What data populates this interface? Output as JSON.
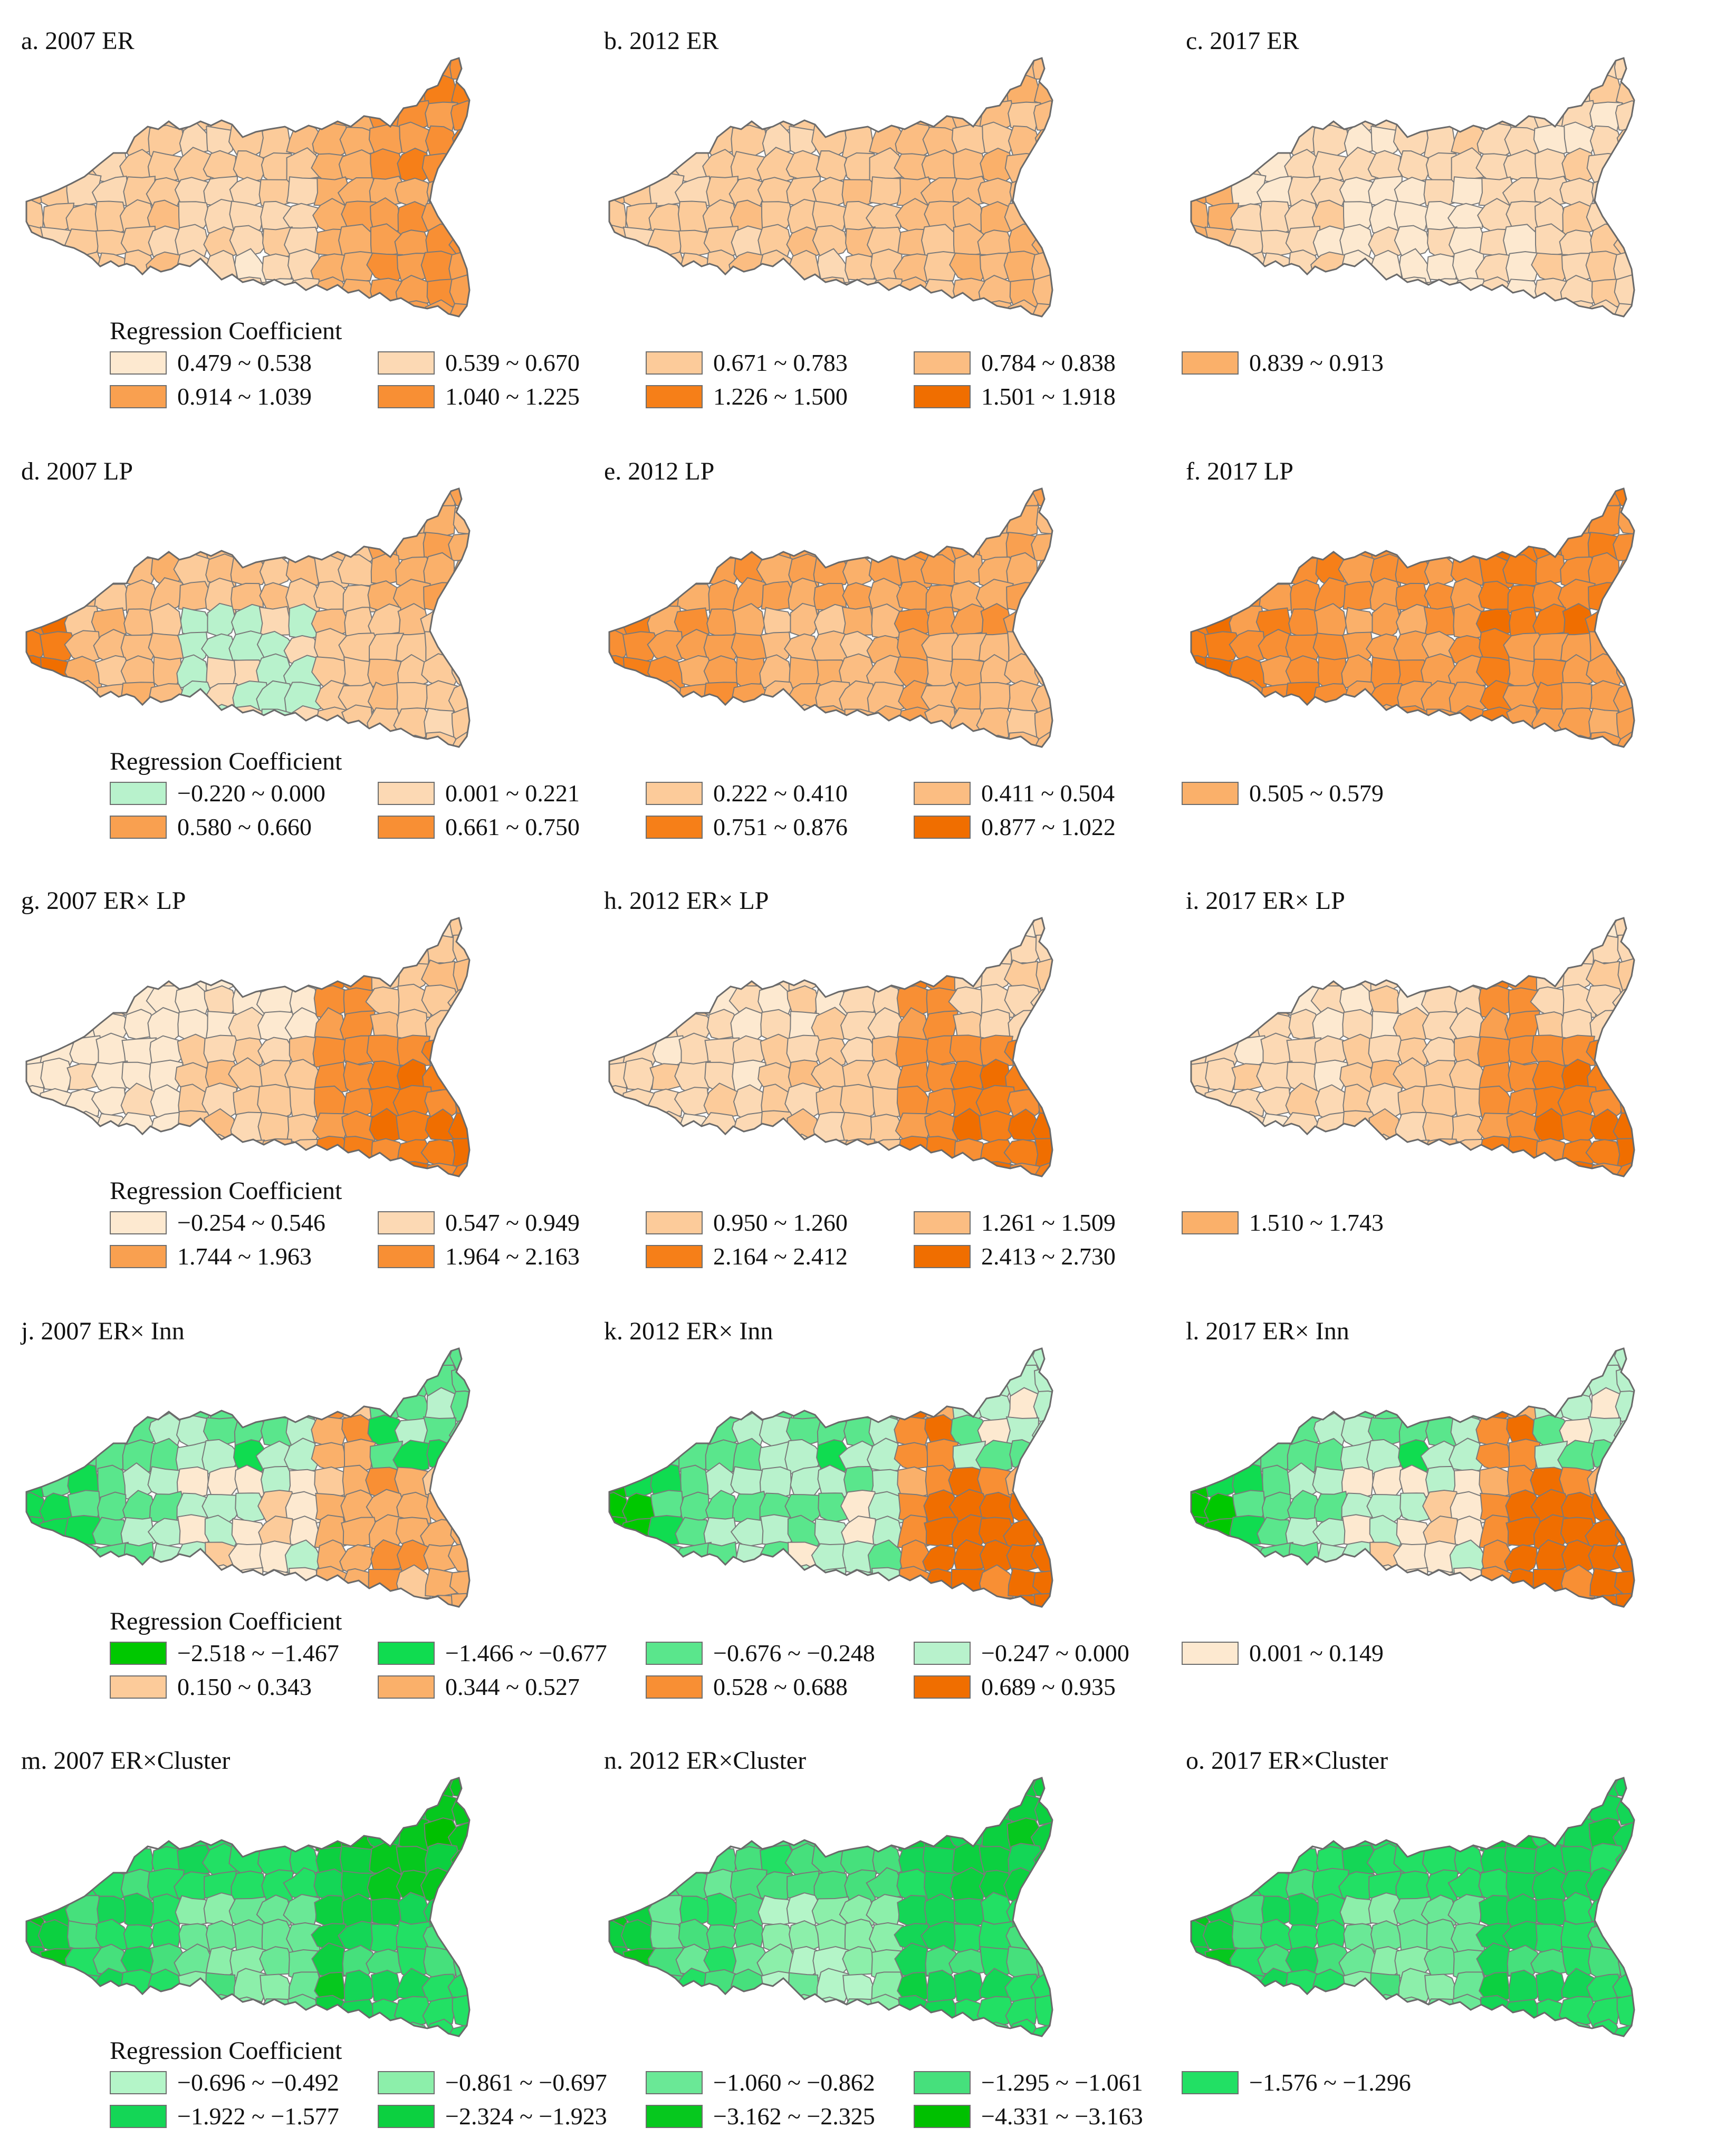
{
  "rows": [
    {
      "panels": [
        {
          "label": "a. 2007 ER",
          "shade": {
            "west": 2,
            "center": 1,
            "east": 4,
            "ne": 6,
            "se": 5,
            "wtip": 2
          }
        },
        {
          "label": "b. 2012 ER",
          "shade": {
            "west": 2,
            "center": 2,
            "east": 3,
            "ne": 3,
            "se": 3,
            "wtip": 2
          }
        },
        {
          "label": "c. 2017 ER",
          "shade": {
            "west": 1,
            "center": 0,
            "east": 1,
            "ne": 1,
            "se": 1,
            "wtip": 4
          }
        }
      ],
      "legend": {
        "title": "Regression Coefficient",
        "items": [
          {
            "label": "0.479 ~ 0.538",
            "color": "#fde9d0"
          },
          {
            "label": "0.539 ~ 0.670",
            "color": "#fcd9b4"
          },
          {
            "label": "0.671 ~ 0.783",
            "color": "#fccb9a"
          },
          {
            "label": "0.784 ~ 0.838",
            "color": "#fbbd82"
          },
          {
            "label": "0.839 ~ 0.913",
            "color": "#fab06a"
          },
          {
            "label": "0.914 ~ 1.039",
            "color": "#f9a050"
          },
          {
            "label": "1.040 ~ 1.225",
            "color": "#f88f34"
          },
          {
            "label": "1.226 ~ 1.500",
            "color": "#f67f18"
          },
          {
            "label": "1.501 ~ 1.918",
            "color": "#f06e00"
          }
        ]
      }
    },
    {
      "panels": [
        {
          "label": "d. 2007 LP",
          "shade": {
            "west": 3,
            "center": 0,
            "east": 2,
            "ne": 4,
            "se": 2,
            "wtip": 8
          }
        },
        {
          "label": "e. 2012 LP",
          "shade": {
            "west": 5,
            "center": 3,
            "east": 5,
            "ne": 4,
            "se": 3,
            "wtip": 7
          }
        },
        {
          "label": "f. 2017 LP",
          "shade": {
            "west": 6,
            "center": 5,
            "east": 7,
            "ne": 6,
            "se": 5,
            "wtip": 8
          }
        }
      ],
      "legend": {
        "title": "Regression Coefficient",
        "items": [
          {
            "label": "−0.220 ~ 0.000",
            "color": "#b8f2cc"
          },
          {
            "label": "0.001 ~ 0.221",
            "color": "#fcd9b4"
          },
          {
            "label": "0.222 ~ 0.410",
            "color": "#fccb9a"
          },
          {
            "label": "0.411 ~ 0.504",
            "color": "#fbbd82"
          },
          {
            "label": "0.505 ~ 0.579",
            "color": "#fab06a"
          },
          {
            "label": "0.580 ~ 0.660",
            "color": "#f9a050"
          },
          {
            "label": "0.661 ~ 0.750",
            "color": "#f88f34"
          },
          {
            "label": "0.751 ~ 0.876",
            "color": "#f67f18"
          },
          {
            "label": "0.877 ~ 1.022",
            "color": "#f06e00"
          }
        ]
      }
    },
    {
      "panels": [
        {
          "label": "g. 2007 ER× LP",
          "shade": {
            "west": 0,
            "center": 2,
            "east": 6,
            "ne": 2,
            "se": 7,
            "wtip": 0
          }
        },
        {
          "label": "h. 2012 ER× LP",
          "shade": {
            "west": 1,
            "center": 2,
            "east": 6,
            "ne": 1,
            "se": 7,
            "wtip": 1
          }
        },
        {
          "label": "i. 2017 ER× LP",
          "shade": {
            "west": 1,
            "center": 2,
            "east": 6,
            "ne": 1,
            "se": 7,
            "wtip": 1
          }
        }
      ],
      "legend": {
        "title": "Regression Coefficient",
        "items": [
          {
            "label": "−0.254 ~ 0.546",
            "color": "#fde9d0"
          },
          {
            "label": "0.547 ~ 0.949",
            "color": "#fcd9b4"
          },
          {
            "label": "0.950 ~ 1.260",
            "color": "#fccb9a"
          },
          {
            "label": "1.261 ~ 1.509",
            "color": "#fbbd82"
          },
          {
            "label": "1.510 ~ 1.743",
            "color": "#fab06a"
          },
          {
            "label": "1.744 ~ 1.963",
            "color": "#f9a050"
          },
          {
            "label": "1.964 ~ 2.163",
            "color": "#f88f34"
          },
          {
            "label": "2.164 ~ 2.412",
            "color": "#f67f18"
          },
          {
            "label": "2.413 ~ 2.730",
            "color": "#f06e00"
          }
        ]
      }
    },
    {
      "panels": [
        {
          "label": "j. 2007 ER× Inn",
          "shade": {
            "west": 2,
            "center": 4,
            "east": 6,
            "ne": 2,
            "se": 6,
            "wtip": 1
          }
        },
        {
          "label": "k. 2012 ER× Inn",
          "shade": {
            "west": 2,
            "center": 3,
            "east": 7,
            "ne": 3,
            "se": 8,
            "wtip": 0
          }
        },
        {
          "label": "l. 2017 ER× Inn",
          "shade": {
            "west": 2,
            "center": 4,
            "east": 7,
            "ne": 3,
            "se": 8,
            "wtip": 0
          }
        }
      ],
      "legend": {
        "title": "Regression Coefficient",
        "items": [
          {
            "label": "−2.518 ~ −1.467",
            "color": "#00c800"
          },
          {
            "label": "−1.466 ~ −0.677",
            "color": "#10dc50"
          },
          {
            "label": "−0.676 ~ −0.248",
            "color": "#5ae68c"
          },
          {
            "label": "−0.247 ~ 0.000",
            "color": "#b8f2cc"
          },
          {
            "label": "0.001 ~ 0.149",
            "color": "#fde9d0"
          },
          {
            "label": "0.150 ~ 0.343",
            "color": "#fccb9a"
          },
          {
            "label": "0.344 ~ 0.527",
            "color": "#fab06a"
          },
          {
            "label": "0.528 ~ 0.688",
            "color": "#f88f34"
          },
          {
            "label": "0.689 ~ 0.935",
            "color": "#f06e00"
          }
        ]
      }
    },
    {
      "panels": [
        {
          "label": "m. 2007 ER×Cluster",
          "shade": {
            "west": 4,
            "center": 2,
            "east": 6,
            "ne": 7,
            "se": 4,
            "wtip": 7
          }
        },
        {
          "label": "n. 2012 ER×Cluster",
          "shade": {
            "west": 3,
            "center": 1,
            "east": 5,
            "ne": 6,
            "se": 4,
            "wtip": 7
          }
        },
        {
          "label": "o. 2017 ER×Cluster",
          "shade": {
            "west": 4,
            "center": 2,
            "east": 5,
            "ne": 5,
            "se": 4,
            "wtip": 7
          }
        }
      ],
      "legend": {
        "title": "Regression Coefficient",
        "items": [
          {
            "label": "−0.696 ~ −0.492",
            "color": "#b4f5c8"
          },
          {
            "label": "−0.861 ~ −0.697",
            "color": "#8cefaa"
          },
          {
            "label": "−1.060 ~ −0.862",
            "color": "#6ae896"
          },
          {
            "label": "−1.295 ~ −1.061",
            "color": "#46e07c"
          },
          {
            "label": "−1.576 ~ −1.296",
            "color": "#22e064"
          },
          {
            "label": "−1.922 ~ −1.577",
            "color": "#14d656"
          },
          {
            "label": "−2.324 ~ −1.923",
            "color": "#0cd040"
          },
          {
            "label": "−3.162 ~ −2.325",
            "color": "#06c81e"
          },
          {
            "label": "−4.331 ~ −3.163",
            "color": "#00c000"
          }
        ]
      }
    }
  ]
}
